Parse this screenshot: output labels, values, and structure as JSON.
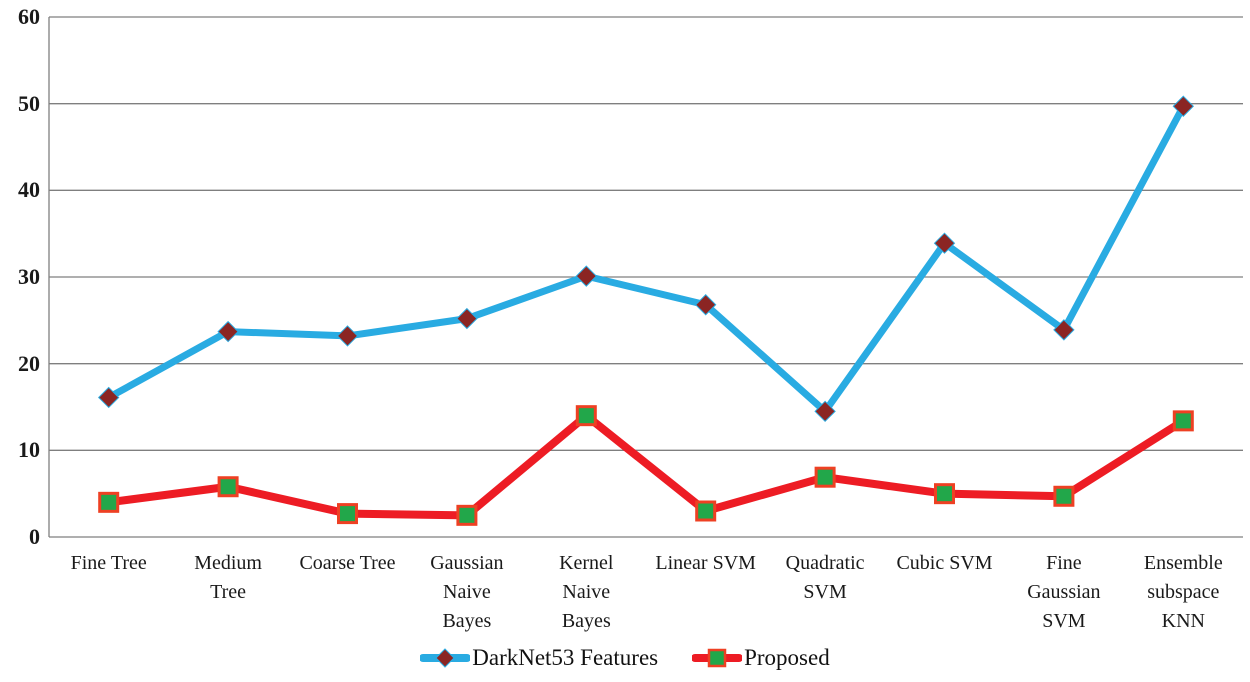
{
  "chart_data": {
    "type": "line",
    "title": "",
    "xlabel": "",
    "ylabel": "",
    "ylim": [
      0,
      60
    ],
    "yticks": [
      0,
      10,
      20,
      30,
      40,
      50,
      60
    ],
    "grid": "horizontal-gridlines-on",
    "gridline_color": "#7f7f7f",
    "axis_text_color": "#1a1a1a",
    "legend_position": "bottom-center",
    "categories": [
      "Fine Tree",
      "Medium Tree",
      "Coarse Tree",
      "Gaussian Naive Bayes",
      "Kernel Naive Bayes",
      "Linear SVM",
      "Quadratic SVM",
      "Cubic SVM",
      "Fine Gaussian SVM",
      "Ensemble subspace KNN"
    ],
    "category_lines": [
      [
        "Fine Tree"
      ],
      [
        "Medium",
        "Tree"
      ],
      [
        "Coarse Tree"
      ],
      [
        "Gaussian",
        "Naive",
        "Bayes"
      ],
      [
        "Kernel",
        "Naive",
        "Bayes"
      ],
      [
        "Linear SVM"
      ],
      [
        "Quadratic",
        "SVM"
      ],
      [
        "Cubic SVM"
      ],
      [
        "Fine",
        "Gaussian",
        "SVM"
      ],
      [
        "Ensemble",
        "subspace",
        "KNN"
      ]
    ],
    "series": [
      {
        "name": "DarkNet53 Features",
        "marker": "diamond",
        "line_color": "#29abe2",
        "marker_color": "#8b2523",
        "marker_border_color": "#29abe2",
        "values": [
          16.1,
          23.7,
          23.2,
          25.2,
          30.1,
          26.8,
          14.5,
          33.9,
          23.9,
          49.7
        ]
      },
      {
        "name": "Proposed",
        "marker": "square",
        "line_color": "#ed1c24",
        "marker_color": "#22a74a",
        "marker_border_color": "#ee4023",
        "values": [
          4.0,
          5.8,
          2.7,
          2.5,
          14.0,
          3.0,
          6.9,
          5.0,
          4.7,
          13.4
        ]
      }
    ]
  }
}
